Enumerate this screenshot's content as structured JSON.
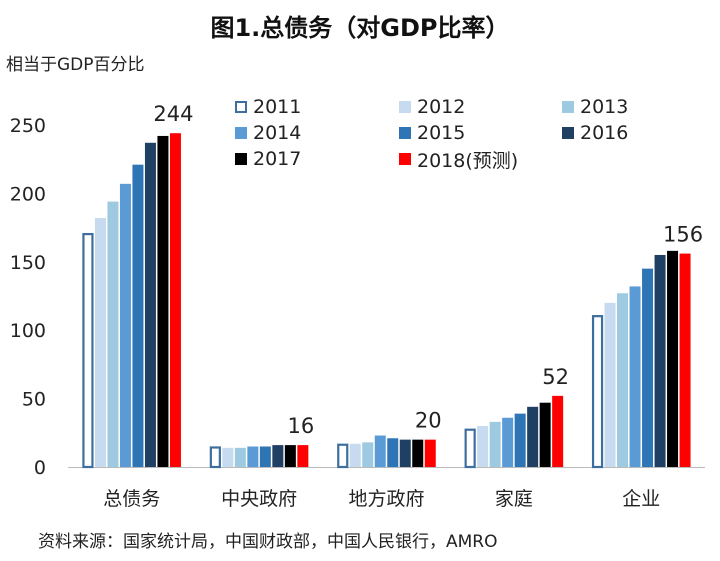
{
  "chart_data": {
    "type": "bar",
    "title": "图1.总债务（对GDP比率）",
    "ylabel": "相当于GDP百分比",
    "xlabel": "",
    "ylim": [
      0,
      250
    ],
    "yticks": [
      0,
      50,
      100,
      150,
      200,
      250
    ],
    "categories": [
      "总债务",
      "中央政府",
      "地方政府",
      "家庭",
      "企业"
    ],
    "series": [
      {
        "name": "2011",
        "color": "#ffffff",
        "outline": "#3e6e9e",
        "values": [
          171,
          15,
          17,
          28,
          111
        ]
      },
      {
        "name": "2012",
        "color": "#c6dbef",
        "values": [
          182,
          14,
          17,
          30,
          120
        ]
      },
      {
        "name": "2013",
        "color": "#9ecae1",
        "values": [
          194,
          14,
          18,
          33,
          127
        ]
      },
      {
        "name": "2014",
        "color": "#5b9bd5",
        "values": [
          207,
          15,
          23,
          36,
          132
        ]
      },
      {
        "name": "2015",
        "color": "#2e75b6",
        "values": [
          221,
          15,
          21,
          39,
          145
        ]
      },
      {
        "name": "2016",
        "color": "#1f3f63",
        "values": [
          237,
          16,
          20,
          44,
          155
        ]
      },
      {
        "name": "2017",
        "color": "#000000",
        "values": [
          242,
          16,
          20,
          47,
          158
        ]
      },
      {
        "name": "2018(预测)",
        "color": "#ff0000",
        "values": [
          244,
          16,
          20,
          52,
          156
        ]
      }
    ],
    "data_labels": [
      {
        "category": "总债务",
        "text": "244"
      },
      {
        "category": "中央政府",
        "text": "16"
      },
      {
        "category": "地方政府",
        "text": "20"
      },
      {
        "category": "家庭",
        "text": "52"
      },
      {
        "category": "企业",
        "text": "156"
      }
    ],
    "legend_position": "top-right",
    "grid": false
  },
  "source": "资料来源：国家统计局，中国财政部，中国人民银行，AMRO"
}
